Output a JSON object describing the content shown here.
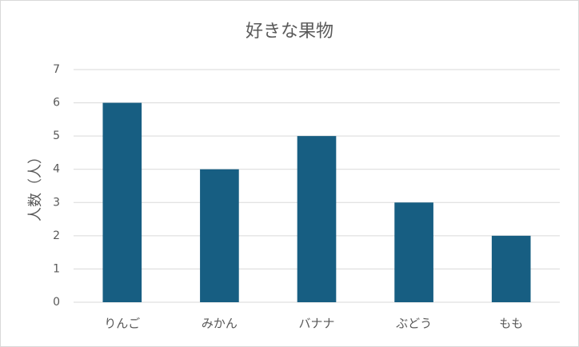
{
  "chart_data": {
    "type": "bar",
    "title": "好きな果物",
    "y_label": "人数（人）",
    "categories": [
      "りんご",
      "みかん",
      "バナナ",
      "ぶどう",
      "もも"
    ],
    "values": [
      6,
      4,
      5,
      3,
      2
    ],
    "color": "#175e82",
    "ylim": [
      0,
      7
    ],
    "yticks": [
      0,
      1,
      2,
      3,
      4,
      5,
      6,
      7
    ],
    "grid": true
  }
}
